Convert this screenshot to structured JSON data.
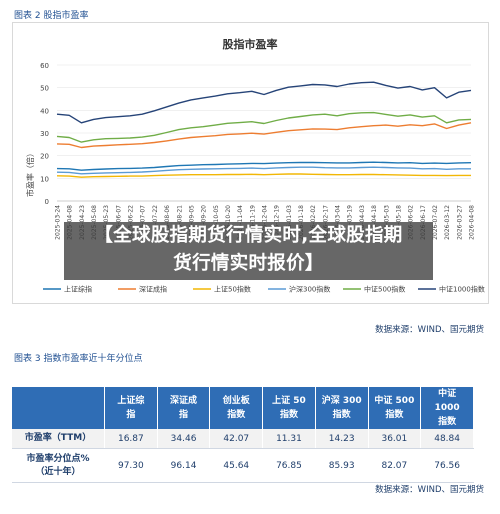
{
  "captions": {
    "fig2": "图表 2  股指市盈率",
    "fig3": "图表 3  指数市盈率近十年分位点"
  },
  "sources": {
    "fig2": "数据来源：WIND、国元期货",
    "fig3": "数据来源：WIND、国元期货"
  },
  "banner": {
    "line1": "【全球股指期货行情实时,全球股指期",
    "line2": "货行情实时报价】"
  },
  "colors": {
    "header_bg": "#2f6db5",
    "series": [
      "#1f77b4",
      "#ed7d31",
      "#f2b705",
      "#5b9bd5",
      "#70ad47",
      "#264478"
    ]
  },
  "chart_data": {
    "type": "line",
    "title": "股指市盈率",
    "ylabel": "市盈率（倍）",
    "ylim": [
      0,
      60
    ],
    "yticks": [
      0,
      10,
      20,
      30,
      40,
      50,
      60
    ],
    "x_tick_labels": [
      "2025-03-24",
      "2025-04-08",
      "2025-04-23",
      "2025-05-08",
      "2025-05-23",
      "2025-06-07",
      "2025-06-22",
      "2025-07-07",
      "2025-07-22",
      "2025-08-06",
      "2025-08-21",
      "2025-09-05",
      "2025-09-20",
      "2025-10-05",
      "2025-10-20",
      "2025-11-04",
      "2025-11-19",
      "2025-12-04",
      "2025-12-19",
      "2026-01-03",
      "2026-01-18",
      "2026-02-02",
      "2026-02-17",
      "2026-03-04",
      "2026-03-19",
      "2026-04-03",
      "2026-04-18",
      "2026-05-03",
      "2026-05-18",
      "2026-06-02",
      "2026-06-17",
      "2026-07-02",
      "2026-03-12",
      "2026-03-27",
      "2026-04-08"
    ],
    "legend_position": "bottom",
    "series": [
      {
        "name": "上证综指",
        "values": [
          14.3,
          14.2,
          13.6,
          13.9,
          14.1,
          14.3,
          14.4,
          14.5,
          14.8,
          15.2,
          15.6,
          15.8,
          16.0,
          16.1,
          16.3,
          16.4,
          16.6,
          16.5,
          16.7,
          16.9,
          17.0,
          17.0,
          16.9,
          16.8,
          16.8,
          17.0,
          17.1,
          17.0,
          16.8,
          16.9,
          16.6,
          16.7,
          16.6,
          16.8,
          16.9
        ]
      },
      {
        "name": "深证成指",
        "values": [
          25.2,
          25.0,
          23.6,
          24.2,
          24.5,
          24.8,
          25.0,
          25.3,
          25.8,
          26.5,
          27.3,
          28.0,
          28.4,
          28.8,
          29.4,
          29.6,
          29.9,
          29.5,
          30.3,
          31.0,
          31.4,
          31.8,
          31.7,
          31.5,
          32.3,
          32.8,
          33.2,
          33.5,
          33.0,
          33.6,
          33.2,
          34.0,
          32.0,
          33.5,
          34.5
        ]
      },
      {
        "name": "上证50指数",
        "values": [
          11.1,
          11.0,
          10.5,
          10.7,
          10.8,
          10.9,
          11.0,
          11.0,
          11.2,
          11.4,
          11.5,
          11.6,
          11.6,
          11.6,
          11.7,
          11.7,
          11.8,
          11.6,
          11.8,
          11.9,
          11.9,
          11.8,
          11.7,
          11.6,
          11.6,
          11.7,
          11.7,
          11.6,
          11.5,
          11.4,
          11.3,
          11.3,
          11.2,
          11.3,
          11.3
        ]
      },
      {
        "name": "沪深300指数",
        "values": [
          12.7,
          12.6,
          12.0,
          12.2,
          12.4,
          12.5,
          12.6,
          12.8,
          13.1,
          13.5,
          13.8,
          14.0,
          14.1,
          14.2,
          14.3,
          14.4,
          14.5,
          14.3,
          14.6,
          14.8,
          14.9,
          14.9,
          14.7,
          14.6,
          14.6,
          14.8,
          14.9,
          14.8,
          14.6,
          14.5,
          14.2,
          14.3,
          14.0,
          14.2,
          14.2
        ]
      },
      {
        "name": "中证500指数",
        "values": [
          28.5,
          28.0,
          26.0,
          27.0,
          27.5,
          27.6,
          27.8,
          28.2,
          29.0,
          30.2,
          31.5,
          32.3,
          32.8,
          33.5,
          34.3,
          34.6,
          35.0,
          34.2,
          35.5,
          36.6,
          37.3,
          38.0,
          38.3,
          37.6,
          38.5,
          38.9,
          39.0,
          38.2,
          37.4,
          38.0,
          37.0,
          37.6,
          34.5,
          35.8,
          36.0
        ]
      },
      {
        "name": "中证1000指数",
        "values": [
          38.3,
          37.8,
          34.5,
          36.0,
          36.8,
          37.2,
          37.6,
          38.3,
          39.8,
          41.5,
          43.2,
          44.6,
          45.5,
          46.3,
          47.3,
          47.8,
          48.4,
          47.0,
          48.8,
          50.2,
          50.8,
          51.4,
          51.2,
          50.5,
          51.6,
          52.2,
          52.4,
          51.0,
          49.8,
          50.5,
          49.0,
          50.0,
          45.5,
          48.0,
          48.8
        ]
      }
    ]
  },
  "table": {
    "headers": [
      [
        "上证综",
        "指"
      ],
      [
        "深证成",
        "指"
      ],
      [
        "创业板",
        "指数"
      ],
      [
        "上证 50",
        "指数"
      ],
      [
        "沪深 300",
        "指数"
      ],
      [
        "中证 500",
        "指数"
      ],
      [
        "中证 1000",
        "指数"
      ]
    ],
    "rows": [
      {
        "label": [
          "市盈率（TTM）"
        ],
        "values": [
          "16.87",
          "34.46",
          "42.07",
          "11.31",
          "14.23",
          "36.01",
          "48.84"
        ]
      },
      {
        "label": [
          "市盈率分位点%",
          "（近十年）"
        ],
        "values": [
          "97.30",
          "96.14",
          "45.64",
          "76.85",
          "85.93",
          "82.07",
          "76.56"
        ]
      }
    ]
  }
}
